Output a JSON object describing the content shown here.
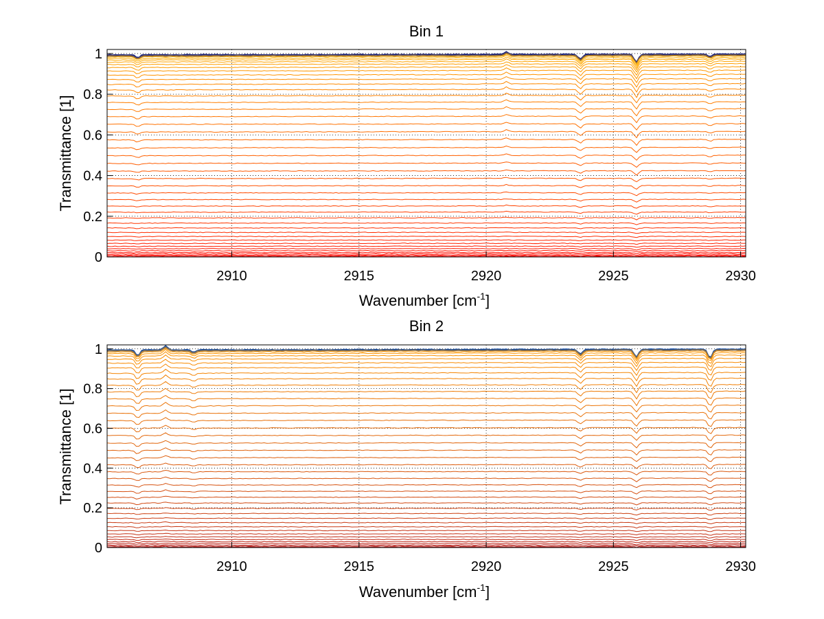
{
  "chart_data": [
    {
      "type": "line",
      "title": "Bin 1",
      "xlabel": "Wavenumber [cm",
      "xlabel_sup": "-1",
      "xlabel_end": "]",
      "ylabel": "Transmittance [1]",
      "xlim": [
        2905.1,
        2930.2
      ],
      "ylim": [
        0,
        1.02
      ],
      "xticks": [
        2910,
        2915,
        2920,
        2925,
        2930
      ],
      "xtick_labels": [
        "2910",
        "2915",
        "2920",
        "2925",
        "2930"
      ],
      "yticks": [
        0,
        0.2,
        0.4,
        0.6,
        0.8,
        1
      ],
      "ytick_labels": [
        "0",
        "0.2",
        "0.4",
        "0.6",
        "0.8",
        "1"
      ],
      "grid": true,
      "baselines": [
        0.997,
        0.992,
        0.987,
        0.98,
        0.972,
        0.962,
        0.95,
        0.935,
        0.918,
        0.898,
        0.876,
        0.852,
        0.825,
        0.795,
        0.763,
        0.729,
        0.693,
        0.655,
        0.617,
        0.578,
        0.539,
        0.5,
        0.462,
        0.424,
        0.387,
        0.351,
        0.316,
        0.283,
        0.251,
        0.221,
        0.193,
        0.167,
        0.143,
        0.121,
        0.101,
        0.083,
        0.067,
        0.053,
        0.041,
        0.031,
        0.022,
        0.015,
        0.009,
        0.004,
        0.001
      ],
      "color_start": "#1a237e",
      "color_mid": "#ffb000",
      "color_end": "#ff0000",
      "absorption_lines": [
        {
          "x": 2906.3,
          "depth": 0.015
        },
        {
          "x": 2920.8,
          "depth": -0.012
        },
        {
          "x": 2923.7,
          "depth": 0.025
        },
        {
          "x": 2925.9,
          "depth": 0.04
        },
        {
          "x": 2928.8,
          "depth": 0.012
        }
      ]
    },
    {
      "type": "line",
      "title": "Bin 2",
      "xlabel": "Wavenumber [cm",
      "xlabel_sup": "-1",
      "xlabel_end": "]",
      "ylabel": "Transmittance [1]",
      "xlim": [
        2905.1,
        2930.2
      ],
      "ylim": [
        0,
        1.02
      ],
      "xticks": [
        2910,
        2915,
        2920,
        2925,
        2930
      ],
      "xtick_labels": [
        "2910",
        "2915",
        "2920",
        "2925",
        "2930"
      ],
      "yticks": [
        0,
        0.2,
        0.4,
        0.6,
        0.8,
        1
      ],
      "ytick_labels": [
        "0",
        "0.2",
        "0.4",
        "0.6",
        "0.8",
        "1"
      ],
      "grid": true,
      "baselines": [
        0.998,
        0.994,
        0.988,
        0.98,
        0.968,
        0.952,
        0.932,
        0.908,
        0.881,
        0.852,
        0.82,
        0.787,
        0.752,
        0.716,
        0.679,
        0.642,
        0.604,
        0.566,
        0.528,
        0.491,
        0.454,
        0.418,
        0.383,
        0.349,
        0.316,
        0.284,
        0.254,
        0.225,
        0.198,
        0.172,
        0.148,
        0.126,
        0.105,
        0.086,
        0.069,
        0.054,
        0.041,
        0.03,
        0.021,
        0.013,
        0.007,
        0.003
      ],
      "color_start": "#0d47a1",
      "color_mid": "#ff9800",
      "color_end": "#b71c1c",
      "absorption_lines": [
        {
          "x": 2906.3,
          "depth": 0.03
        },
        {
          "x": 2907.4,
          "depth": -0.02
        },
        {
          "x": 2908.5,
          "depth": 0.012
        },
        {
          "x": 2923.7,
          "depth": 0.025
        },
        {
          "x": 2925.9,
          "depth": 0.04
        },
        {
          "x": 2928.8,
          "depth": 0.045
        }
      ]
    }
  ]
}
